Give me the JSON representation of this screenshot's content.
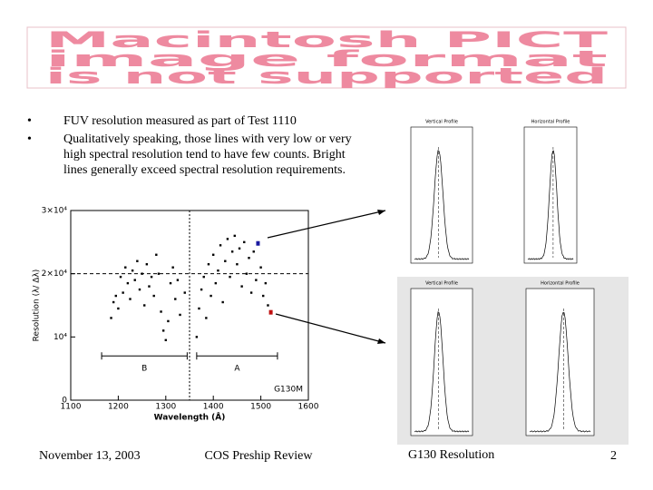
{
  "banner": {
    "lines": [
      "Macintosh PICT",
      "image format",
      "is not supported"
    ]
  },
  "bullets": [
    "FUV resolution measured as part of Test 1110",
    "Qualitatively speaking, those lines with very low or very high spectral resolution tend to have few counts.  Bright lines generally exceed spectral resolution requirements."
  ],
  "chart_data": {
    "type": "scatter",
    "x_label": "Wavelength (Å)",
    "y_label": "Resolution (λ/ Δλ)",
    "xlim": [
      1100,
      1600
    ],
    "xticks": [
      1100,
      1200,
      1300,
      1400,
      1500,
      1600
    ],
    "ylim": [
      0,
      30000
    ],
    "yticks": [
      0,
      {
        "value": 10000,
        "label": "10⁴"
      },
      {
        "value": 20000,
        "label": "2×10⁴"
      },
      {
        "value": 30000,
        "label": "3×10⁴"
      }
    ],
    "color": "#000000",
    "x": [
      1185,
      1190,
      1195,
      1200,
      1205,
      1210,
      1215,
      1220,
      1225,
      1230,
      1235,
      1240,
      1245,
      1250,
      1255,
      1260,
      1265,
      1270,
      1275,
      1280,
      1285,
      1290,
      1295,
      1300,
      1305,
      1310,
      1315,
      1320,
      1325,
      1330,
      1340,
      1365,
      1370,
      1375,
      1380,
      1385,
      1390,
      1395,
      1400,
      1405,
      1410,
      1415,
      1420,
      1425,
      1430,
      1435,
      1440,
      1445,
      1450,
      1455,
      1460,
      1465,
      1470,
      1475,
      1480,
      1485,
      1490,
      1500,
      1505,
      1510,
      1515
    ],
    "values": [
      13000,
      15500,
      16500,
      14500,
      19500,
      17000,
      21000,
      18500,
      16000,
      20500,
      19000,
      22000,
      17500,
      20000,
      15000,
      21500,
      18000,
      19500,
      16500,
      23000,
      20000,
      14000,
      11000,
      9500,
      12500,
      18500,
      21000,
      16000,
      19000,
      13500,
      17000,
      10000,
      14500,
      17500,
      19500,
      13000,
      21500,
      16500,
      23000,
      18500,
      20500,
      24500,
      15500,
      22000,
      25500,
      19500,
      23500,
      26000,
      21500,
      24000,
      18000,
      25000,
      20000,
      22500,
      17000,
      23500,
      19000,
      21000,
      16500,
      18500,
      15000
    ],
    "highlights": [
      {
        "x": 1494,
        "y": 24800,
        "color": "#1a1aa0"
      },
      {
        "x": 1521,
        "y": 13900,
        "color": "#c01010"
      }
    ],
    "divider_x": 1350,
    "requirement_y": 20000,
    "ranges": [
      {
        "label": "B",
        "start": 1165,
        "end": 1345,
        "y": 7000
      },
      {
        "label": "A",
        "start": 1365,
        "end": 1535,
        "y": 7000
      }
    ],
    "annotation": "G130M"
  },
  "profiles": [
    {
      "title": "Vertical Profile"
    },
    {
      "title": "Horizontal Profile"
    },
    {
      "title": "Vertical Profile"
    },
    {
      "title": "Horizontal Profile"
    }
  ],
  "footer": {
    "date": "November 13, 2003",
    "center": "COS Preship Review",
    "title": "G130 Resolution",
    "page": "2"
  }
}
